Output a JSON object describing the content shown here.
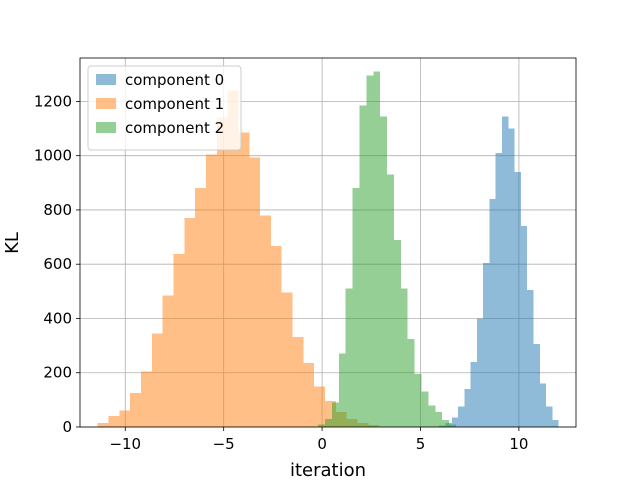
{
  "chart_data": {
    "type": "histogram",
    "title": "",
    "xlabel": "iteration",
    "ylabel": "KL",
    "xlim": [
      -12.3,
      12.9
    ],
    "ylim": [
      0,
      1360
    ],
    "xticks": [
      -10,
      -5,
      0,
      5,
      10
    ],
    "yticks": [
      0,
      200,
      400,
      600,
      800,
      1000,
      1200
    ],
    "grid": true,
    "legend_position": "upper-left",
    "series": [
      {
        "name": "component 0",
        "color": "#1f77b4",
        "opacity": 0.5,
        "bins": [
          {
            "x0": 5.95,
            "x1": 6.27,
            "value": 5
          },
          {
            "x0": 6.27,
            "x1": 6.59,
            "value": 15
          },
          {
            "x0": 6.59,
            "x1": 6.91,
            "value": 35
          },
          {
            "x0": 6.91,
            "x1": 7.23,
            "value": 75
          },
          {
            "x0": 7.23,
            "x1": 7.55,
            "value": 140
          },
          {
            "x0": 7.55,
            "x1": 7.87,
            "value": 240
          },
          {
            "x0": 7.87,
            "x1": 8.18,
            "value": 400
          },
          {
            "x0": 8.18,
            "x1": 8.5,
            "value": 605
          },
          {
            "x0": 8.5,
            "x1": 8.82,
            "value": 840
          },
          {
            "x0": 8.82,
            "x1": 9.14,
            "value": 1010
          },
          {
            "x0": 9.14,
            "x1": 9.46,
            "value": 1145
          },
          {
            "x0": 9.46,
            "x1": 9.78,
            "value": 1100
          },
          {
            "x0": 9.78,
            "x1": 10.1,
            "value": 940
          },
          {
            "x0": 10.1,
            "x1": 10.42,
            "value": 740
          },
          {
            "x0": 10.42,
            "x1": 10.74,
            "value": 505
          },
          {
            "x0": 10.74,
            "x1": 11.06,
            "value": 305
          },
          {
            "x0": 11.06,
            "x1": 11.38,
            "value": 160
          },
          {
            "x0": 11.38,
            "x1": 11.7,
            "value": 75
          },
          {
            "x0": 11.7,
            "x1": 12.02,
            "value": 25
          }
        ]
      },
      {
        "name": "component 1",
        "color": "#ff7f0e",
        "opacity": 0.5,
        "bins": [
          {
            "x0": -11.4,
            "x1": -10.85,
            "value": 15
          },
          {
            "x0": -10.85,
            "x1": -10.3,
            "value": 40
          },
          {
            "x0": -10.3,
            "x1": -9.75,
            "value": 60
          },
          {
            "x0": -9.75,
            "x1": -9.2,
            "value": 125
          },
          {
            "x0": -9.2,
            "x1": -8.65,
            "value": 205
          },
          {
            "x0": -8.65,
            "x1": -8.1,
            "value": 345
          },
          {
            "x0": -8.1,
            "x1": -7.55,
            "value": 485
          },
          {
            "x0": -7.55,
            "x1": -7.0,
            "value": 638
          },
          {
            "x0": -7.0,
            "x1": -6.45,
            "value": 770
          },
          {
            "x0": -6.45,
            "x1": -5.9,
            "value": 880
          },
          {
            "x0": -5.9,
            "x1": -5.35,
            "value": 1005
          },
          {
            "x0": -5.35,
            "x1": -4.8,
            "value": 1140
          },
          {
            "x0": -4.8,
            "x1": -4.25,
            "value": 1240
          },
          {
            "x0": -4.25,
            "x1": -3.7,
            "value": 1085
          },
          {
            "x0": -3.7,
            "x1": -3.15,
            "value": 993
          },
          {
            "x0": -3.15,
            "x1": -2.6,
            "value": 780
          },
          {
            "x0": -2.6,
            "x1": -2.05,
            "value": 668
          },
          {
            "x0": -2.05,
            "x1": -1.5,
            "value": 495
          },
          {
            "x0": -1.5,
            "x1": -0.95,
            "value": 332
          },
          {
            "x0": -0.95,
            "x1": -0.4,
            "value": 235
          },
          {
            "x0": -0.4,
            "x1": 0.15,
            "value": 150
          },
          {
            "x0": 0.15,
            "x1": 0.7,
            "value": 95
          },
          {
            "x0": 0.7,
            "x1": 1.25,
            "value": 55
          },
          {
            "x0": 1.25,
            "x1": 1.8,
            "value": 30
          },
          {
            "x0": 1.8,
            "x1": 2.35,
            "value": 15
          },
          {
            "x0": 2.35,
            "x1": 2.9,
            "value": 8
          }
        ]
      },
      {
        "name": "component 2",
        "color": "#2ca02c",
        "opacity": 0.5,
        "bins": [
          {
            "x0": -0.2,
            "x1": 0.15,
            "value": 10
          },
          {
            "x0": 0.15,
            "x1": 0.5,
            "value": 30
          },
          {
            "x0": 0.5,
            "x1": 0.85,
            "value": 90
          },
          {
            "x0": 0.85,
            "x1": 1.2,
            "value": 270
          },
          {
            "x0": 1.2,
            "x1": 1.55,
            "value": 510
          },
          {
            "x0": 1.55,
            "x1": 1.9,
            "value": 880
          },
          {
            "x0": 1.9,
            "x1": 2.25,
            "value": 1185
          },
          {
            "x0": 2.25,
            "x1": 2.6,
            "value": 1295
          },
          {
            "x0": 2.6,
            "x1": 2.95,
            "value": 1310
          },
          {
            "x0": 2.95,
            "x1": 3.3,
            "value": 1145
          },
          {
            "x0": 3.3,
            "x1": 3.65,
            "value": 930
          },
          {
            "x0": 3.65,
            "x1": 4.0,
            "value": 690
          },
          {
            "x0": 4.0,
            "x1": 4.35,
            "value": 510
          },
          {
            "x0": 4.35,
            "x1": 4.7,
            "value": 325
          },
          {
            "x0": 4.7,
            "x1": 5.05,
            "value": 195
          },
          {
            "x0": 5.05,
            "x1": 5.4,
            "value": 130
          },
          {
            "x0": 5.4,
            "x1": 5.75,
            "value": 80
          },
          {
            "x0": 5.75,
            "x1": 6.1,
            "value": 55
          },
          {
            "x0": 6.1,
            "x1": 6.45,
            "value": 25
          },
          {
            "x0": 6.45,
            "x1": 6.8,
            "value": 10
          }
        ]
      }
    ]
  }
}
